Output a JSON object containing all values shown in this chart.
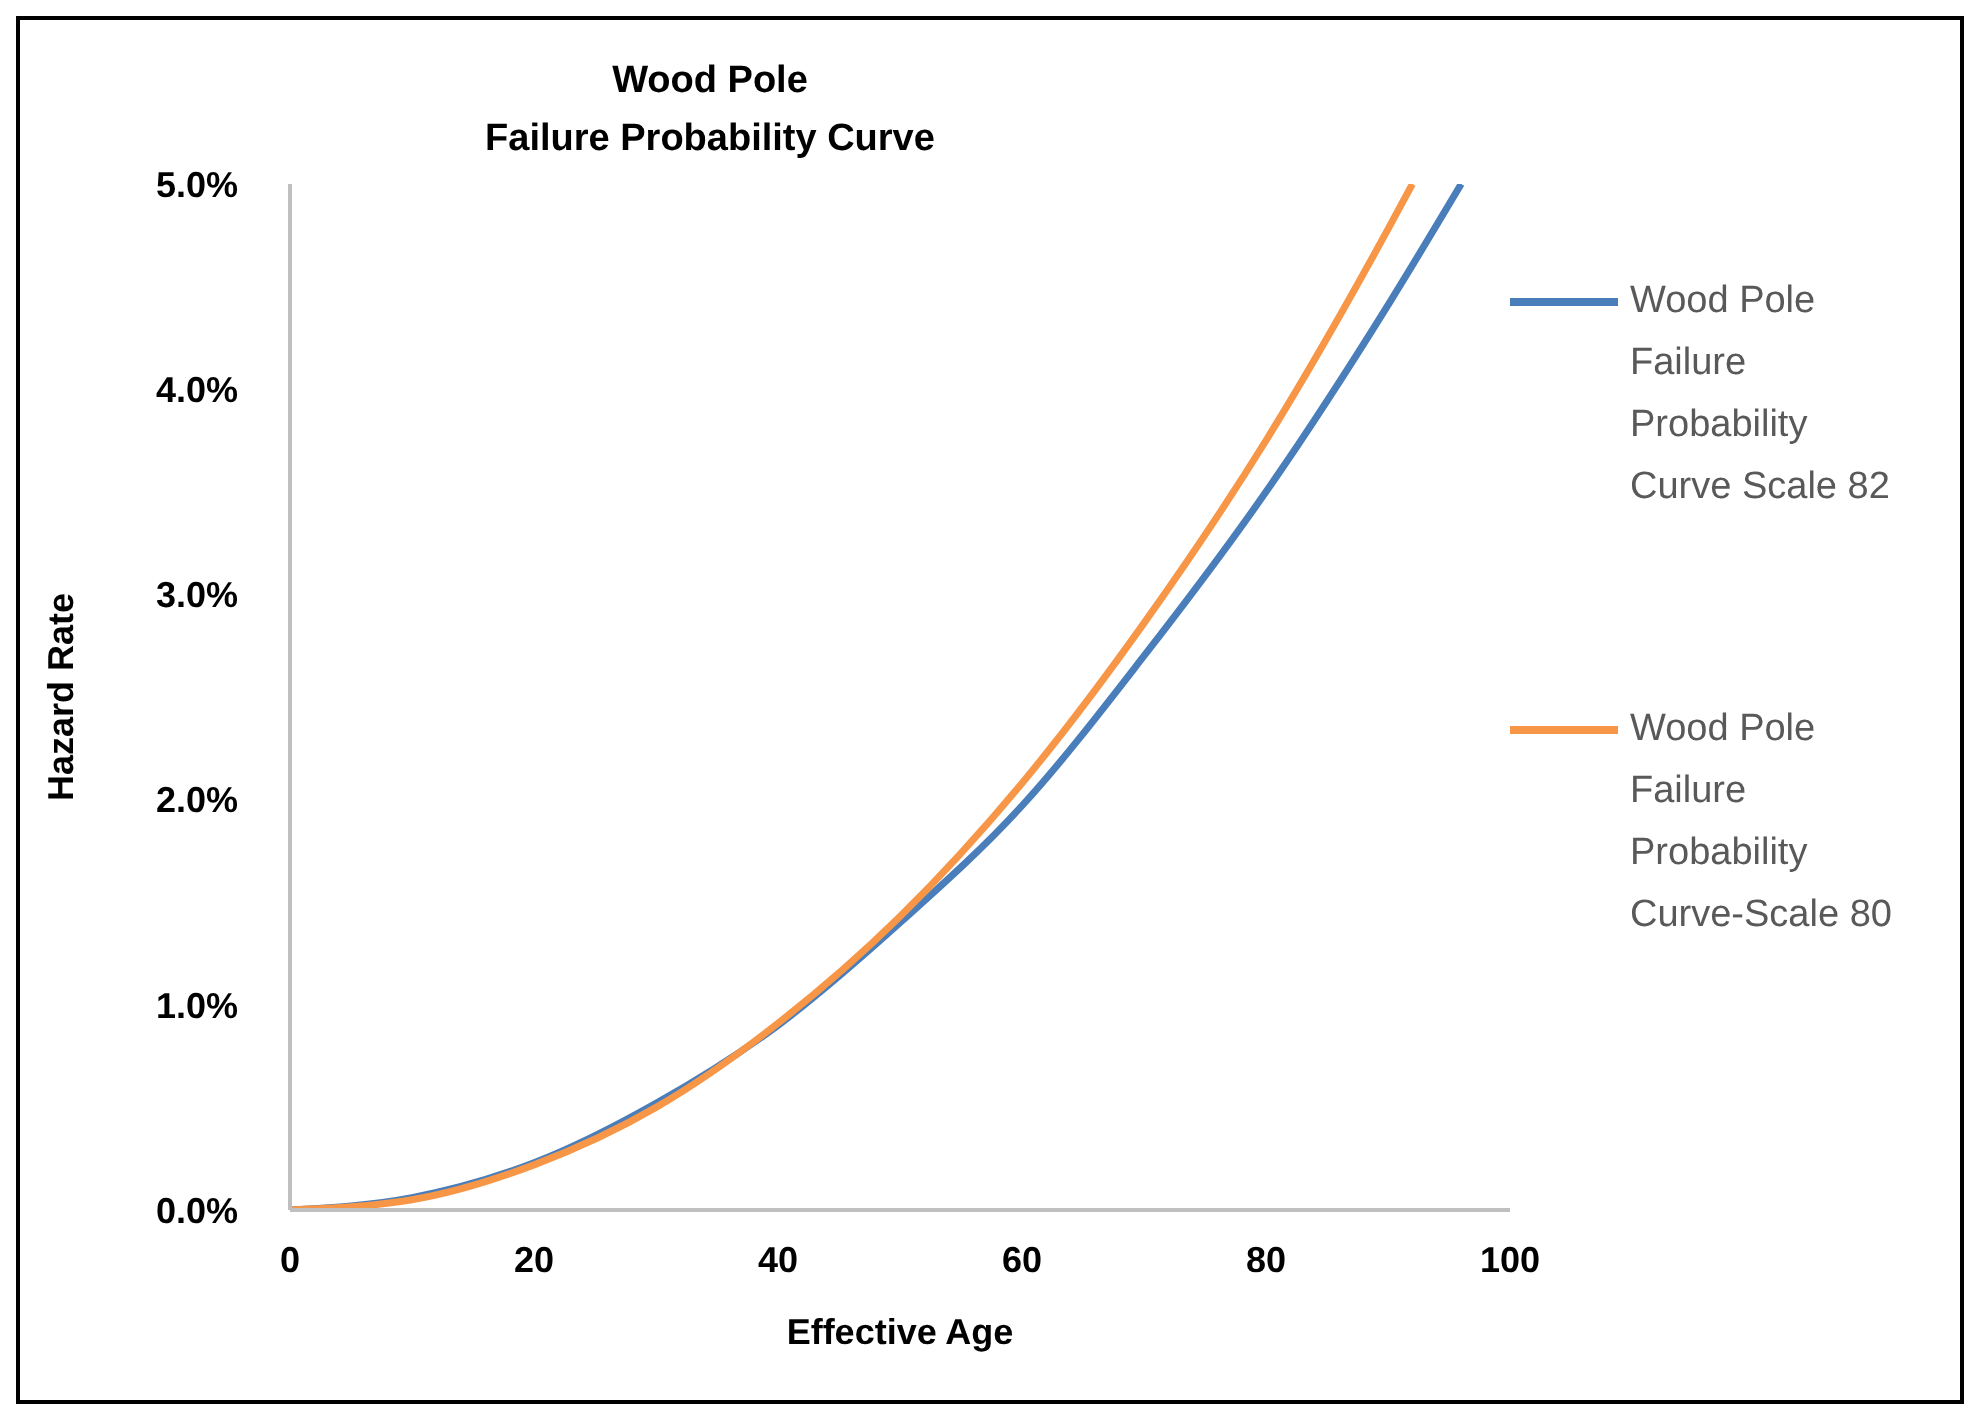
{
  "chart_data": {
    "type": "line",
    "title": "Wood Pole\nFailure Probability Curve",
    "xlabel": "Effective Age",
    "ylabel": "Hazard Rate",
    "series": [
      {
        "name": "Wood Pole Failure Probability Curve Scale 82",
        "color": "#4a7ebb",
        "x": [
          0,
          10,
          20,
          30,
          40,
          50,
          60,
          70,
          80,
          90,
          96
        ],
        "values": [
          0,
          0.06,
          0.23,
          0.52,
          0.9,
          1.4,
          1.97,
          2.7,
          3.5,
          4.41,
          5.0
        ]
      },
      {
        "name": "Wood Pole Failure Probability Curve-Scale 80",
        "color": "#f79646",
        "x": [
          0,
          10,
          20,
          30,
          40,
          50,
          60,
          70,
          80,
          90,
          92
        ],
        "values": [
          0,
          0.05,
          0.22,
          0.5,
          0.91,
          1.43,
          2.08,
          2.86,
          3.75,
          4.78,
          5.0
        ]
      }
    ],
    "xlim": [
      0,
      100
    ],
    "xticks": [
      0,
      20,
      40,
      60,
      80,
      100
    ],
    "ylim": [
      0,
      5
    ],
    "yticks": [
      {
        "value": 0,
        "label": "0.0%"
      },
      {
        "value": 1,
        "label": "1.0%"
      },
      {
        "value": 2,
        "label": "2.0%"
      },
      {
        "value": 3,
        "label": "3.0%"
      },
      {
        "value": 4,
        "label": "4.0%"
      },
      {
        "value": 5,
        "label": "5.0%"
      }
    ],
    "grid": false,
    "legend": "right",
    "marker": "none",
    "line_style": "solid"
  }
}
